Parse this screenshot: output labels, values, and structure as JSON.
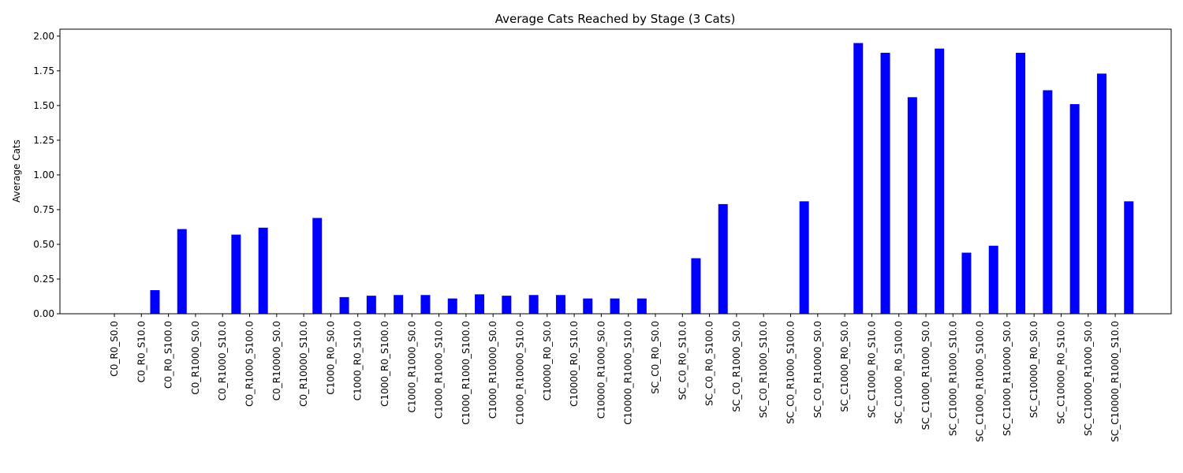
{
  "chart_data": {
    "type": "bar",
    "title": "Average Cats Reached by Stage (3 Cats)",
    "xlabel": "",
    "ylabel": "Average Cats",
    "ylim": [
      0,
      2.05
    ],
    "yticks": [
      0.0,
      0.25,
      0.5,
      0.75,
      1.0,
      1.25,
      1.5,
      1.75,
      2.0
    ],
    "ytick_labels": [
      "0.00",
      "0.25",
      "0.50",
      "0.75",
      "1.00",
      "1.25",
      "1.50",
      "1.75",
      "2.00"
    ],
    "grid": false,
    "bar_color": "#0000ff",
    "categories": [
      "C0_R0_S0.0",
      "C0_R0_S10.0",
      "C0_R0_S100.0",
      "C0_R1000_S0.0",
      "C0_R1000_S10.0",
      "C0_R1000_S100.0",
      "C0_R10000_S0.0",
      "C0_R10000_S10.0",
      "C1000_R0_S0.0",
      "C1000_R0_S10.0",
      "C1000_R0_S100.0",
      "C1000_R1000_S0.0",
      "C1000_R1000_S10.0",
      "C1000_R1000_S100.0",
      "C1000_R10000_S0.0",
      "C1000_R10000_S10.0",
      "C10000_R0_S0.0",
      "C10000_R0_S10.0",
      "C10000_R1000_S0.0",
      "C10000_R1000_S10.0",
      "SC_C0_R0_S0.0",
      "SC_C0_R0_S10.0",
      "SC_C0_R0_S100.0",
      "SC_C0_R1000_S0.0",
      "SC_C0_R1000_S10.0",
      "SC_C0_R1000_S100.0",
      "SC_C0_R10000_S0.0",
      "SC_C1000_R0_S0.0",
      "SC_C1000_R0_S10.0",
      "SC_C1000_R0_S100.0",
      "SC_C1000_R1000_S0.0",
      "SC_C1000_R1000_S10.0",
      "SC_C1000_R1000_S100.0",
      "SC_C1000_R10000_S0.0",
      "SC_C10000_R0_S0.0",
      "SC_C10000_R0_S10.0",
      "SC_C10000_R1000_S0.0",
      "SC_C10000_R1000_S10.0"
    ],
    "values": [
      0.0,
      0.17,
      0.61,
      0.0,
      0.57,
      0.62,
      0.0,
      0.69,
      0.12,
      0.13,
      0.135,
      0.135,
      0.11,
      0.14,
      0.13,
      0.135,
      0.135,
      0.11,
      0.11,
      0.11,
      0.0,
      0.4,
      0.79,
      0.0,
      0.0,
      0.81,
      0.0,
      1.95,
      1.88,
      1.56,
      1.91,
      0.44,
      0.49,
      1.88,
      1.61,
      1.51,
      1.73,
      0.81
    ]
  }
}
